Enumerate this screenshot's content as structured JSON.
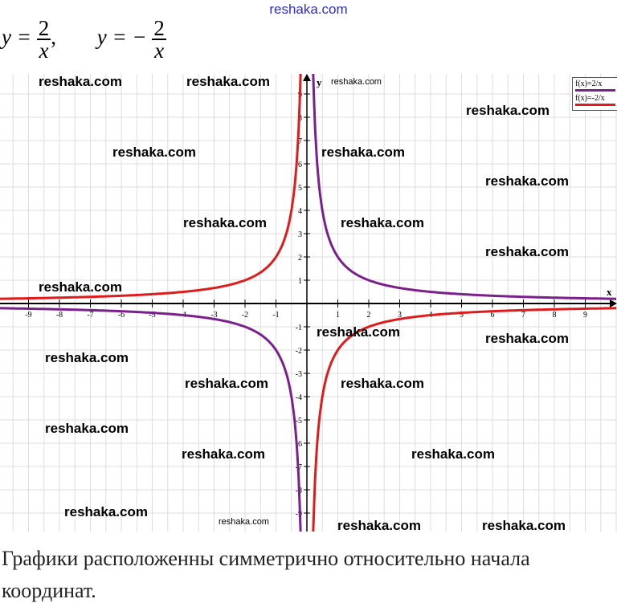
{
  "header": {
    "site": "reshaka.com"
  },
  "formula": {
    "f1_lhs": "y =",
    "f1_num": "2",
    "f1_den": "x",
    "sep": ",",
    "f2_lhs": "y = −",
    "f2_num": "2",
    "f2_den": "x"
  },
  "watermark_text": "reshaka.com",
  "chart_data": {
    "type": "line",
    "title": "",
    "xlabel": "x",
    "ylabel": "y",
    "xlim": [
      -9.9,
      9.9
    ],
    "ylim": [
      -9.8,
      9.8
    ],
    "x_ticks": [
      -9,
      -8,
      -7,
      -6,
      -5,
      -4,
      -3,
      -2,
      -1,
      1,
      2,
      3,
      4,
      5,
      6,
      7,
      8,
      9
    ],
    "y_ticks": [
      -9,
      -8,
      -7,
      -6,
      -5,
      -4,
      -3,
      -2,
      -1,
      1,
      2,
      3,
      4,
      5,
      6,
      7,
      8,
      9
    ],
    "grid": true,
    "legend_position": "top-right",
    "series": [
      {
        "name": "f(x)=2/x",
        "k": 2,
        "color": "#7b1f8c"
      },
      {
        "name": "f(x)=-2/x",
        "k": -2,
        "color": "#e01b1b"
      }
    ]
  },
  "conclusion": "Графики расположенны симметрично относительно начала координат."
}
